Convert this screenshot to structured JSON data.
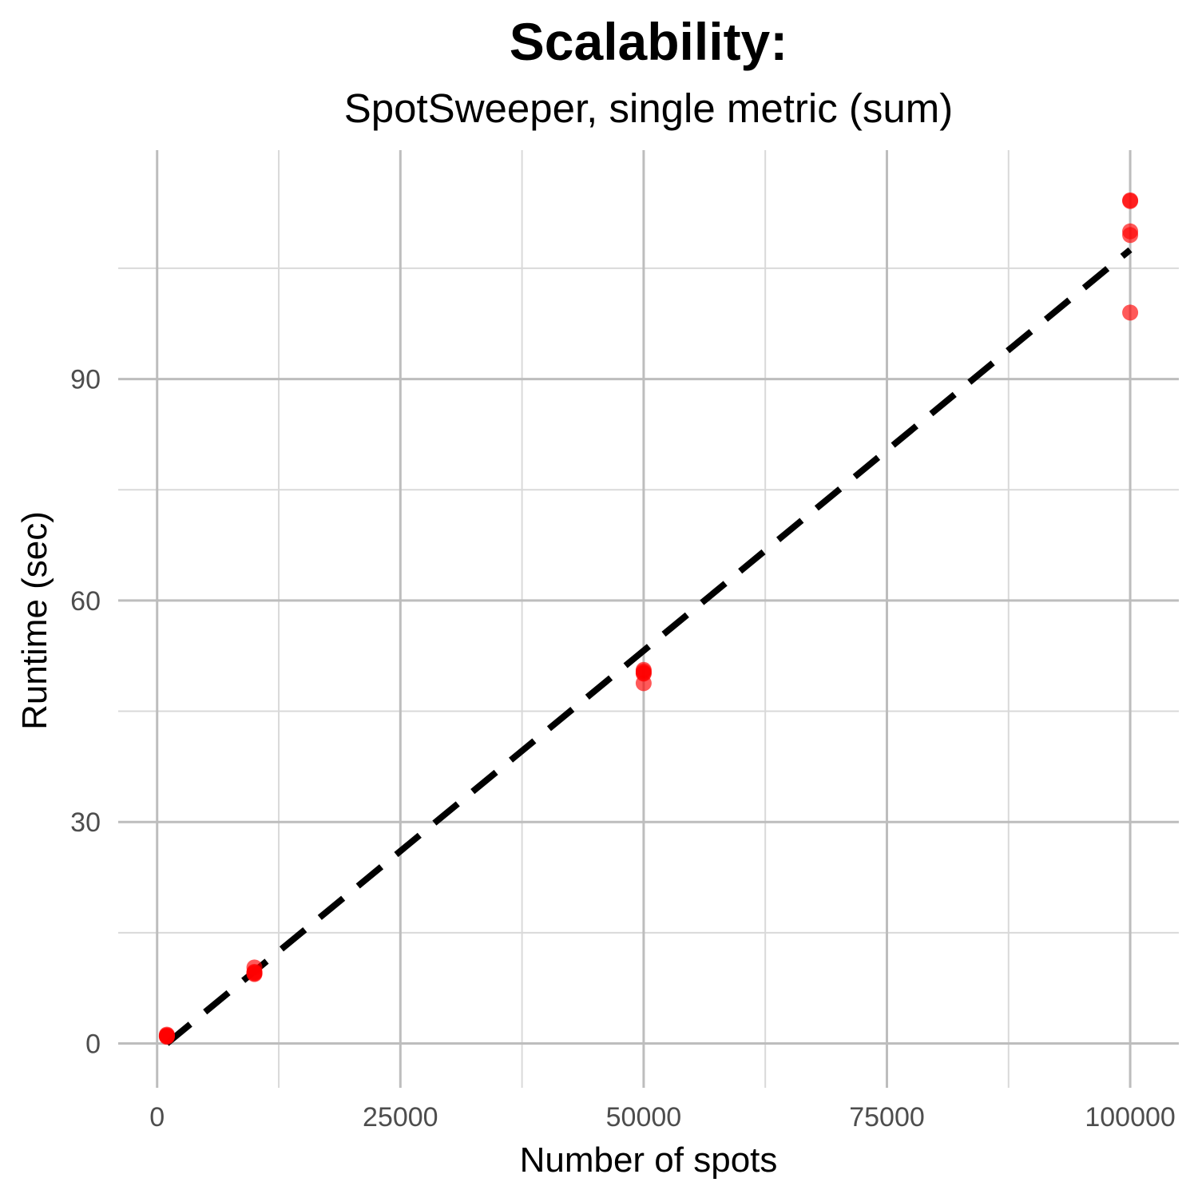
{
  "chart_data": {
    "type": "scatter",
    "title": "Scalability:",
    "subtitle": "SpotSweeper, single metric (sum)",
    "xlabel": "Number of spots",
    "ylabel": "Runtime (sec)",
    "xlim": [
      -4000,
      105000
    ],
    "ylim": [
      -6,
      121
    ],
    "x_ticks": [
      0,
      25000,
      50000,
      75000,
      100000
    ],
    "x_tick_labels": [
      "0",
      "25000",
      "50000",
      "75000",
      "100000"
    ],
    "x_minor_ticks": [
      12500,
      37500,
      62500,
      87500
    ],
    "y_ticks": [
      0,
      30,
      60,
      90
    ],
    "y_tick_labels": [
      "0",
      "30",
      "60",
      "90"
    ],
    "y_minor_ticks": [
      15,
      45,
      75,
      105
    ],
    "grid": true,
    "series": [
      {
        "marker_color": "#ff0000",
        "x": [
          1000,
          1000,
          1000,
          1000,
          1000,
          10000,
          10000,
          10000,
          10000,
          10000,
          50000,
          50000,
          50000,
          50000,
          50000,
          100000,
          100000,
          100000,
          100000,
          100000
        ],
        "y": [
          1.0,
          1.1,
          1.2,
          0.9,
          1.0,
          9.4,
          9.6,
          10.3,
          9.5,
          9.7,
          48.8,
          50.2,
          50.6,
          50.4,
          50.1,
          114.2,
          114.1,
          110.0,
          109.5,
          99.0
        ]
      }
    ],
    "trend_line": {
      "style": "dashed",
      "color": "#000000",
      "x": [
        1000,
        100000
      ],
      "y": [
        0,
        107.5
      ]
    }
  }
}
